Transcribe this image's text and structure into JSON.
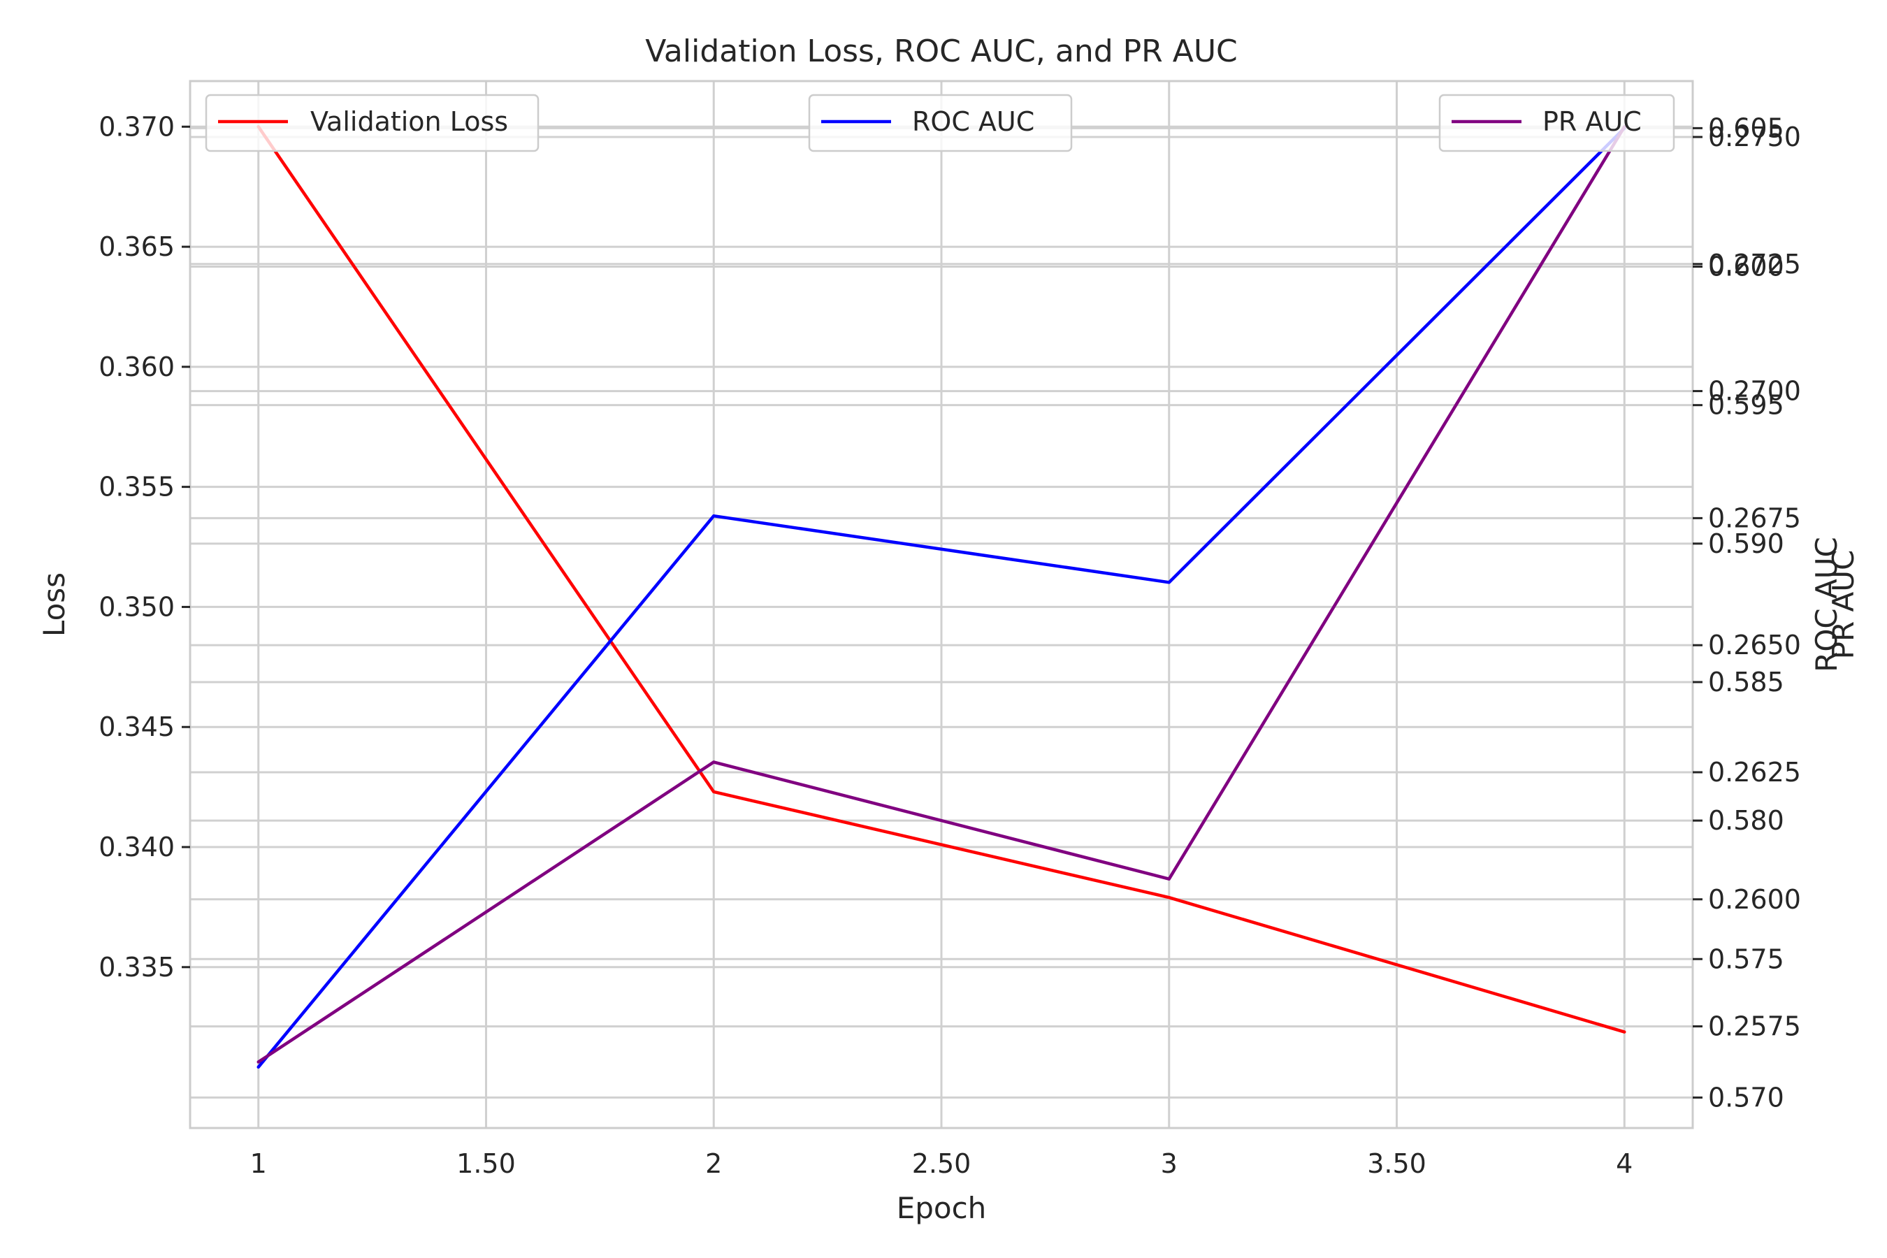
{
  "chart_data": {
    "type": "line",
    "title": "Validation Loss, ROC AUC, and PR AUC",
    "xlabel": "Epoch",
    "ylabel_left": "Loss",
    "ylabel_right_1": "ROC AUC",
    "ylabel_right_2": "PR AUC",
    "x": [
      1,
      2,
      3,
      4
    ],
    "xlim": [
      0.85,
      4.15
    ],
    "xticks": [
      1,
      1.5,
      2,
      2.5,
      3,
      3.5,
      4
    ],
    "xtick_labels": [
      "1",
      "1.50",
      "2",
      "2.50",
      "3",
      "3.50",
      "4"
    ],
    "axes": {
      "loss": {
        "ylim": [
          0.3283,
          0.3719
        ],
        "ticks": [
          0.335,
          0.34,
          0.345,
          0.35,
          0.355,
          0.36,
          0.365,
          0.37
        ],
        "tick_labels": [
          "0.335",
          "0.340",
          "0.345",
          "0.350",
          "0.355",
          "0.360",
          "0.365",
          "0.370"
        ]
      },
      "roc": {
        "ylim": [
          0.5689,
          0.6067
        ],
        "ticks": [
          0.57,
          0.575,
          0.58,
          0.585,
          0.59,
          0.595,
          0.6,
          0.605
        ],
        "tick_labels": [
          "0.570",
          "0.575",
          "0.580",
          "0.585",
          "0.590",
          "0.595",
          "0.600",
          "0.605"
        ]
      },
      "pr": {
        "ylim": [
          0.2555,
          0.2761
        ],
        "ticks": [
          0.2575,
          0.26,
          0.2625,
          0.265,
          0.2675,
          0.27,
          0.2725,
          0.275
        ],
        "tick_labels": [
          "0.2575",
          "0.2600",
          "0.2625",
          "0.2650",
          "0.2675",
          "0.2700",
          "0.2725",
          "0.2750"
        ]
      }
    },
    "series": [
      {
        "name": "Validation Loss",
        "axis": "loss",
        "color": "#ff0000",
        "values": [
          0.37,
          0.3423,
          0.3379,
          0.3323
        ]
      },
      {
        "name": "ROC AUC",
        "axis": "roc",
        "color": "#0000ff",
        "values": [
          0.5711,
          0.591,
          0.5886,
          0.605
        ]
      },
      {
        "name": "PR AUC",
        "axis": "pr",
        "color": "#800080",
        "values": [
          0.2568,
          0.2627,
          0.2604,
          0.2752
        ]
      }
    ],
    "grid": true,
    "legend": [
      "upper-left",
      "upper-center",
      "upper-right"
    ]
  }
}
